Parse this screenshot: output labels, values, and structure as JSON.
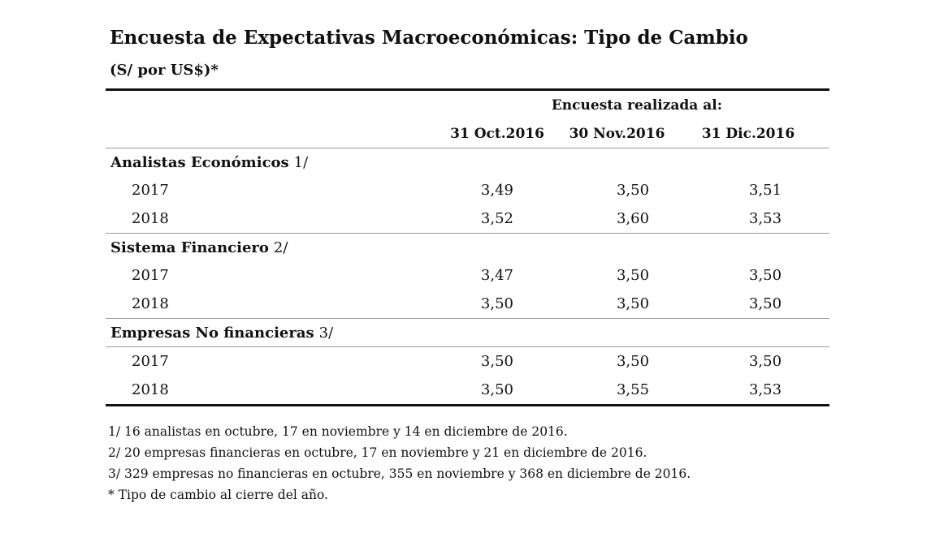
{
  "title": "Encuesta de Expectativas Macroeconómicas: Tipo de Cambio",
  "subtitle": "(S/ por US$)*",
  "table": {
    "caption": "Encuesta realizada al:",
    "columns": [
      "31 Oct.2016",
      "30 Nov.2016",
      "31 Dic.2016"
    ],
    "groups": [
      {
        "name": "Analistas Económicos",
        "note": "1/",
        "rows": [
          {
            "year": "2017",
            "values": [
              "3,49",
              "3,50",
              "3,51"
            ]
          },
          {
            "year": "2018",
            "values": [
              "3,52",
              "3,60",
              "3,53"
            ]
          }
        ]
      },
      {
        "name": "Sistema Financiero",
        "note": "2/",
        "rows": [
          {
            "year": "2017",
            "values": [
              "3,47",
              "3,50",
              "3,50"
            ]
          },
          {
            "year": "2018",
            "values": [
              "3,50",
              "3,50",
              "3,50"
            ]
          }
        ]
      },
      {
        "name": "Empresas No financieras",
        "note": "3/",
        "rows": [
          {
            "year": "2017",
            "values": [
              "3,50",
              "3,50",
              "3,50"
            ]
          },
          {
            "year": "2018",
            "values": [
              "3,50",
              "3,55",
              "3,53"
            ]
          }
        ]
      }
    ]
  },
  "footnotes": [
    "1/ 16 analistas en octubre, 17 en noviembre y 14 en diciembre de 2016.",
    "2/ 20 empresas financieras en octubre, 17 en noviembre y 21 en diciembre de 2016.",
    "3/ 329 empresas no financieras en octubre, 355 en noviembre y 368 en diciembre de 2016.",
    "* Tipo de cambio al cierre del año."
  ]
}
